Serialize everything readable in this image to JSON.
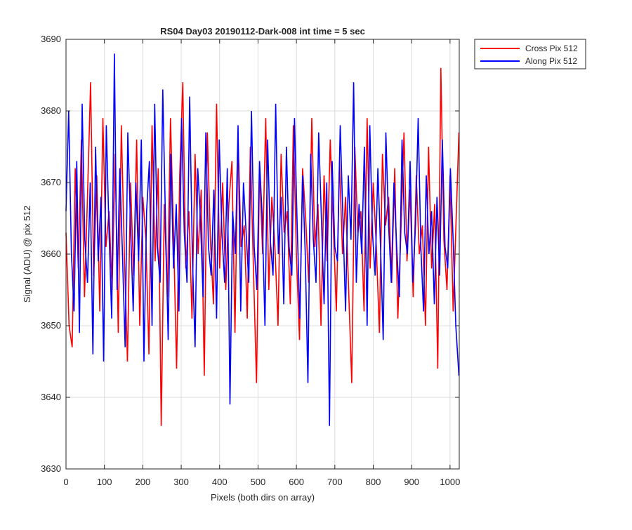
{
  "chart_data": {
    "type": "line",
    "title": "RS04 Day03 20190112-Dark-008 int time = 5 sec",
    "xlabel": "Pixels (both dirs on array)",
    "ylabel": "Signal (ADU) @ pix 512",
    "xlim": [
      0,
      1024
    ],
    "ylim": [
      3630,
      3690
    ],
    "xticks": [
      "0",
      "100",
      "200",
      "300",
      "400",
      "500",
      "600",
      "700",
      "800",
      "900",
      "1000"
    ],
    "yticks": [
      "3630",
      "3640",
      "3650",
      "3660",
      "3670",
      "3680",
      "3690"
    ],
    "grid": true,
    "legend_location": "outside-top-right",
    "series": [
      {
        "name": "Cross Pix 512",
        "color": "#ff0000",
        "x": [
          0,
          8,
          16,
          24,
          32,
          40,
          48,
          56,
          64,
          72,
          80,
          88,
          96,
          104,
          112,
          120,
          128,
          136,
          144,
          152,
          160,
          168,
          176,
          184,
          192,
          200,
          208,
          216,
          224,
          232,
          240,
          248,
          256,
          264,
          272,
          280,
          288,
          296,
          304,
          312,
          320,
          328,
          336,
          344,
          352,
          360,
          368,
          376,
          384,
          392,
          400,
          408,
          416,
          424,
          432,
          440,
          448,
          456,
          464,
          472,
          480,
          488,
          496,
          504,
          512,
          520,
          528,
          536,
          544,
          552,
          560,
          568,
          576,
          584,
          592,
          600,
          608,
          616,
          624,
          632,
          640,
          648,
          656,
          664,
          672,
          680,
          688,
          696,
          704,
          712,
          720,
          728,
          736,
          744,
          752,
          760,
          768,
          776,
          784,
          792,
          800,
          808,
          816,
          824,
          832,
          840,
          848,
          856,
          864,
          872,
          880,
          888,
          896,
          904,
          912,
          920,
          928,
          936,
          944,
          952,
          960,
          968,
          976,
          984,
          992,
          1000,
          1008,
          1016,
          1023
        ],
        "values": [
          3663,
          3650,
          3647,
          3672,
          3658,
          3676,
          3654,
          3668,
          3684,
          3657,
          3671,
          3652,
          3679,
          3661,
          3666,
          3655,
          3674,
          3649,
          3678,
          3660,
          3645,
          3670,
          3657,
          3676,
          3650,
          3668,
          3662,
          3646,
          3678,
          3659,
          3672,
          3636,
          3667,
          3654,
          3679,
          3663,
          3644,
          3671,
          3684,
          3658,
          3666,
          3651,
          3674,
          3660,
          3669,
          3643,
          3677,
          3662,
          3653,
          3681,
          3658,
          3670,
          3655,
          3667,
          3673,
          3649,
          3676,
          3661,
          3664,
          3651,
          3675,
          3658,
          3642,
          3672,
          3660,
          3679,
          3655,
          3668,
          3661,
          3650,
          3674,
          3663,
          3666,
          3653,
          3678,
          3660,
          3648,
          3672,
          3665,
          3656,
          3679,
          3661,
          3667,
          3650,
          3671,
          3659,
          3676,
          3664,
          3652,
          3673,
          3660,
          3668,
          3655,
          3642,
          3675,
          3663,
          3666,
          3652,
          3679,
          3658,
          3670,
          3661,
          3649,
          3674,
          3664,
          3668,
          3656,
          3672,
          3651,
          3663,
          3677,
          3659,
          3669,
          3654,
          3671,
          3660,
          3664,
          3650,
          3675,
          3658,
          3667,
          3644,
          3686,
          3662,
          3655,
          3671,
          3652,
          3665,
          3677
        ]
      },
      {
        "name": "Along Pix 512",
        "color": "#0000ff",
        "x": [
          0,
          7,
          14,
          21,
          28,
          35,
          42,
          49,
          56,
          63,
          70,
          77,
          84,
          91,
          98,
          105,
          112,
          119,
          126,
          133,
          140,
          147,
          154,
          161,
          168,
          175,
          182,
          189,
          196,
          203,
          210,
          217,
          224,
          231,
          238,
          245,
          252,
          259,
          266,
          273,
          280,
          287,
          294,
          301,
          308,
          315,
          322,
          329,
          336,
          343,
          350,
          357,
          364,
          371,
          378,
          385,
          392,
          399,
          406,
          413,
          420,
          427,
          434,
          441,
          448,
          455,
          462,
          469,
          476,
          483,
          490,
          497,
          504,
          511,
          518,
          525,
          532,
          539,
          546,
          553,
          560,
          567,
          574,
          581,
          588,
          595,
          602,
          609,
          616,
          623,
          630,
          637,
          644,
          651,
          658,
          665,
          672,
          679,
          686,
          693,
          700,
          707,
          714,
          721,
          728,
          735,
          742,
          749,
          756,
          763,
          770,
          777,
          784,
          791,
          798,
          805,
          812,
          819,
          826,
          833,
          840,
          847,
          854,
          861,
          868,
          875,
          882,
          889,
          896,
          903,
          910,
          917,
          924,
          931,
          938,
          945,
          952,
          959,
          966,
          973,
          980,
          987,
          994,
          1001,
          1008,
          1015,
          1023
        ],
        "values": [
          3666,
          3680,
          3660,
          3652,
          3673,
          3649,
          3681,
          3662,
          3656,
          3670,
          3646,
          3675,
          3659,
          3668,
          3645,
          3678,
          3663,
          3651,
          3688,
          3655,
          3672,
          3660,
          3647,
          3677,
          3664,
          3652,
          3670,
          3659,
          3676,
          3645,
          3666,
          3673,
          3650,
          3681,
          3661,
          3656,
          3683,
          3665,
          3648,
          3674,
          3658,
          3667,
          3652,
          3679,
          3663,
          3656,
          3682,
          3660,
          3647,
          3672,
          3665,
          3654,
          3677,
          3661,
          3657,
          3669,
          3651,
          3676,
          3663,
          3656,
          3672,
          3639,
          3666,
          3660,
          3678,
          3652,
          3670,
          3663,
          3656,
          3680,
          3661,
          3655,
          3673,
          3665,
          3650,
          3676,
          3662,
          3657,
          3681,
          3660,
          3668,
          3653,
          3675,
          3661,
          3657,
          3679,
          3664,
          3651,
          3671,
          3660,
          3642,
          3674,
          3662,
          3656,
          3677,
          3665,
          3653,
          3670,
          3636,
          3673,
          3661,
          3659,
          3678,
          3665,
          3652,
          3671,
          3662,
          3684,
          3656,
          3667,
          3660,
          3675,
          3650,
          3678,
          3663,
          3657,
          3672,
          3661,
          3648,
          3677,
          3664,
          3656,
          3670,
          3661,
          3654,
          3676,
          3663,
          3660,
          3673,
          3656,
          3664,
          3679,
          3661,
          3652,
          3671,
          3660,
          3666,
          3653,
          3668,
          3657,
          3676,
          3661,
          3658,
          3672,
          3662,
          3650,
          3643
        ]
      }
    ]
  }
}
